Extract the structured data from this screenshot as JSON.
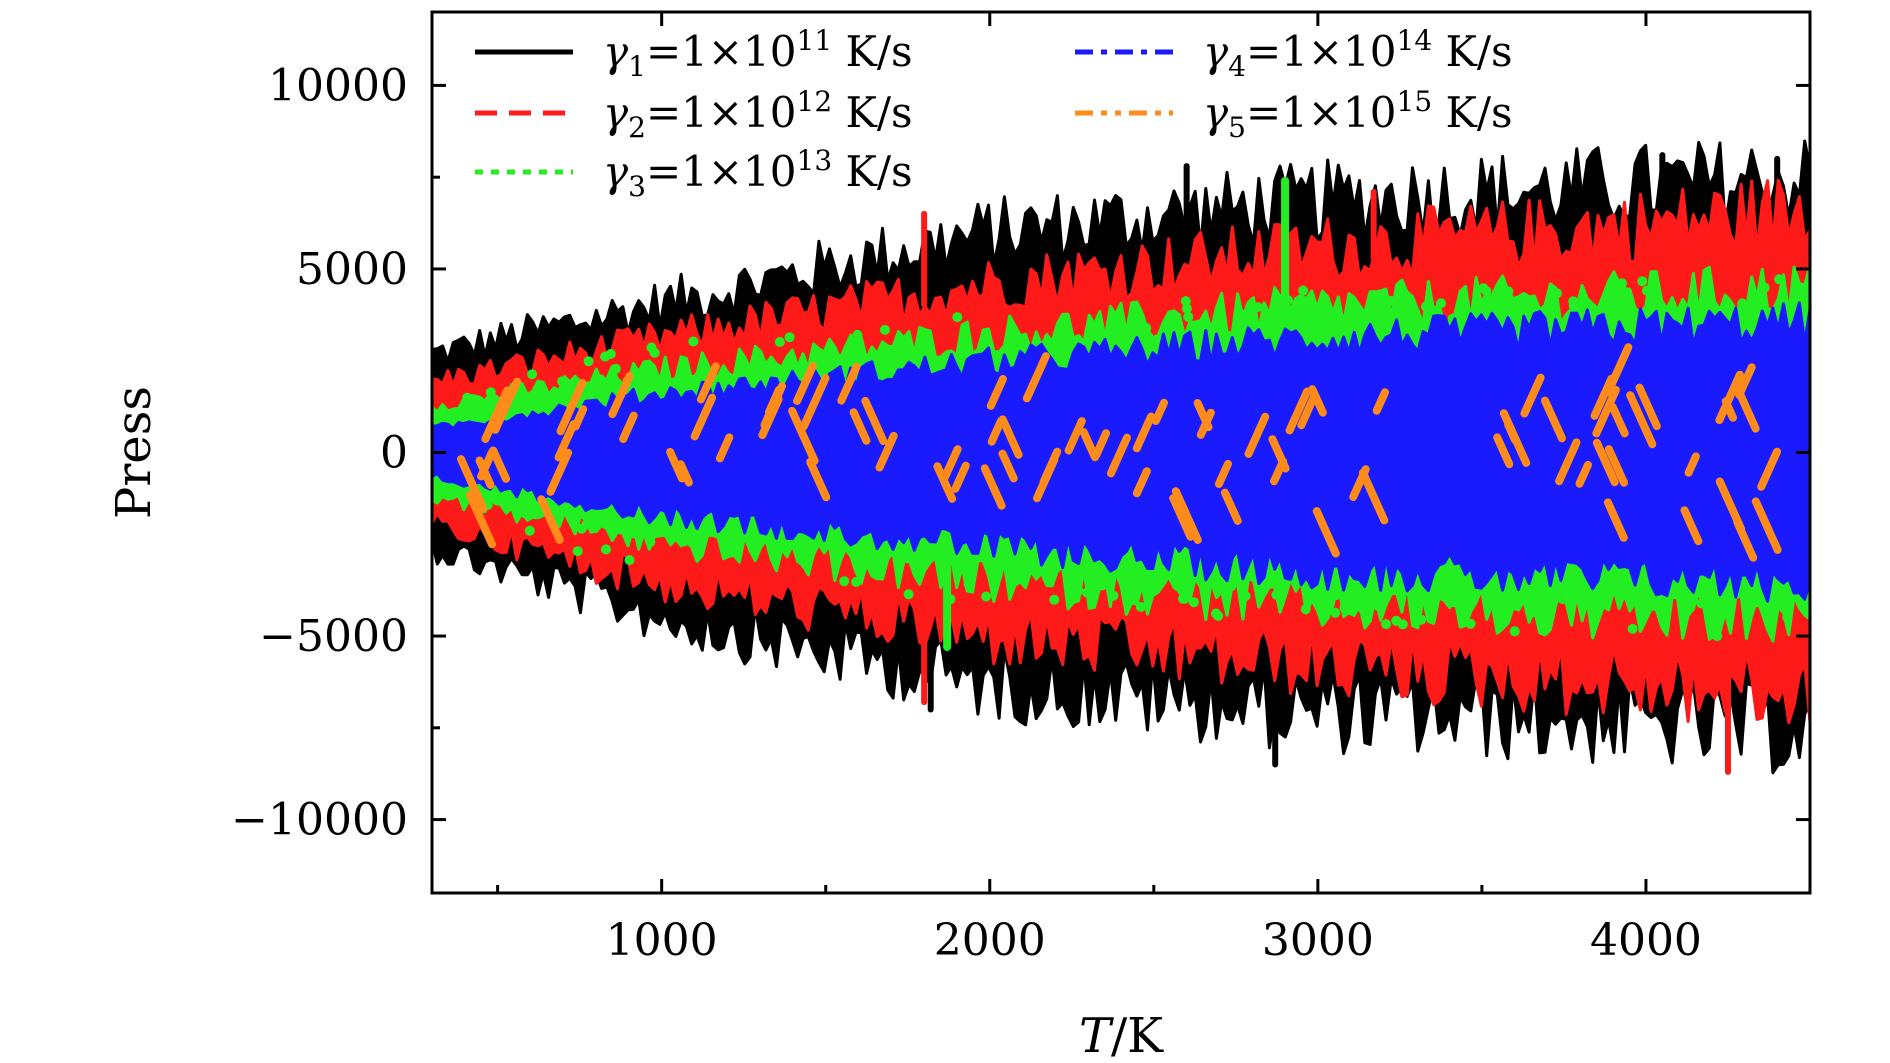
{
  "chart_data": {
    "type": "line",
    "title": "",
    "xlabel_var": "T",
    "xlabel_unit": "/K",
    "ylabel": "Press",
    "xlim": [
      300,
      4500
    ],
    "ylim": [
      -12000,
      12000
    ],
    "x_ticks": [
      1000,
      2000,
      3000,
      4000
    ],
    "x_tick_labels": [
      "1000",
      "2000",
      "3000",
      "4000"
    ],
    "x_minor_ticks": [
      500,
      1500,
      2500,
      3500
    ],
    "y_ticks": [
      -10000,
      -5000,
      0,
      5000,
      10000
    ],
    "y_tick_labels": [
      "−10000",
      "−5000",
      "0",
      "5000",
      "10000"
    ],
    "y_minor_ticks": [
      -7500,
      -2500,
      2500,
      7500
    ],
    "grid": false,
    "legend_position": "top-left",
    "series": [
      {
        "name": "γ₁ = 1×10¹¹ K/s",
        "sym": "γ",
        "sub": "1",
        "base": "=1×10",
        "exp": "11",
        "unit": " K/s",
        "color": "#000000",
        "legend_dash": "solid",
        "envelope": {
          "x": [
            300,
            1000,
            2000,
            3000,
            4000,
            4500
          ],
          "upper": [
            2500,
            3800,
            5600,
            6400,
            6800,
            7000
          ],
          "lower": [
            -2400,
            -4200,
            -5900,
            -6600,
            -6900,
            -7100
          ]
        },
        "spikes": [
          {
            "x": 2870,
            "y": -8500
          },
          {
            "x": 4050,
            "y": 8100
          },
          {
            "x": 4400,
            "y": 8000
          },
          {
            "x": 2600,
            "y": 7800
          },
          {
            "x": 1820,
            "y": -7000
          }
        ]
      },
      {
        "name": "γ₂ = 1×10¹² K/s",
        "sym": "γ",
        "sub": "2",
        "base": "=1×10",
        "exp": "12",
        "unit": " K/s",
        "color": "#ff1a1a",
        "legend_dash": "dashed",
        "envelope": {
          "x": [
            300,
            1000,
            2000,
            3000,
            4000,
            4500
          ],
          "upper": [
            1800,
            2900,
            4300,
            5200,
            5800,
            6200
          ],
          "lower": [
            -1800,
            -3300,
            -4700,
            -5400,
            -5900,
            -6200
          ]
        },
        "spikes": [
          {
            "x": 4250,
            "y": -8700
          },
          {
            "x": 1800,
            "y": 6500
          },
          {
            "x": 1800,
            "y": -6800
          },
          {
            "x": 3170,
            "y": 7100
          }
        ]
      },
      {
        "name": "γ₃ = 1×10¹³ K/s",
        "sym": "γ",
        "sub": "3",
        "base": "=1×10",
        "exp": "13",
        "unit": " K/s",
        "color": "#22ee22",
        "legend_dash": "dotted",
        "envelope": {
          "x": [
            300,
            1000,
            2000,
            3000,
            4000,
            4500
          ],
          "upper": [
            1200,
            2100,
            3000,
            3700,
            4000,
            4200
          ],
          "lower": [
            -1100,
            -2300,
            -3300,
            -3900,
            -4200,
            -4300
          ]
        },
        "spikes": [
          {
            "x": 2900,
            "y": 7400
          },
          {
            "x": 1870,
            "y": -5300
          }
        ]
      },
      {
        "name": "γ₄ = 1×10¹⁴ K/s",
        "sym": "γ",
        "sub": "4",
        "base": "=1×10",
        "exp": "14",
        "unit": " K/s",
        "color": "#1a1aff",
        "legend_dash": "dashdot",
        "envelope": {
          "x": [
            300,
            1000,
            2000,
            3000,
            4000,
            4500
          ],
          "upper": [
            600,
            1500,
            2300,
            2900,
            3200,
            3300
          ],
          "lower": [
            -600,
            -1600,
            -2400,
            -3000,
            -3200,
            -3300
          ]
        },
        "spikes": []
      },
      {
        "name": "γ₅ = 1×10¹⁵ K/s",
        "sym": "γ",
        "sub": "5",
        "base": "=1×10",
        "exp": "15",
        "unit": " K/s",
        "color": "#ff8c1a",
        "legend_dash": "dashdotdot",
        "envelope": {
          "x": [
            300,
            1000,
            2000,
            3000,
            4000,
            4500
          ],
          "upper": [
            900,
            900,
            1000,
            1100,
            1200,
            1200
          ],
          "lower": [
            -900,
            -900,
            -1000,
            -1100,
            -1200,
            -1200
          ]
        },
        "spikes": []
      }
    ]
  }
}
